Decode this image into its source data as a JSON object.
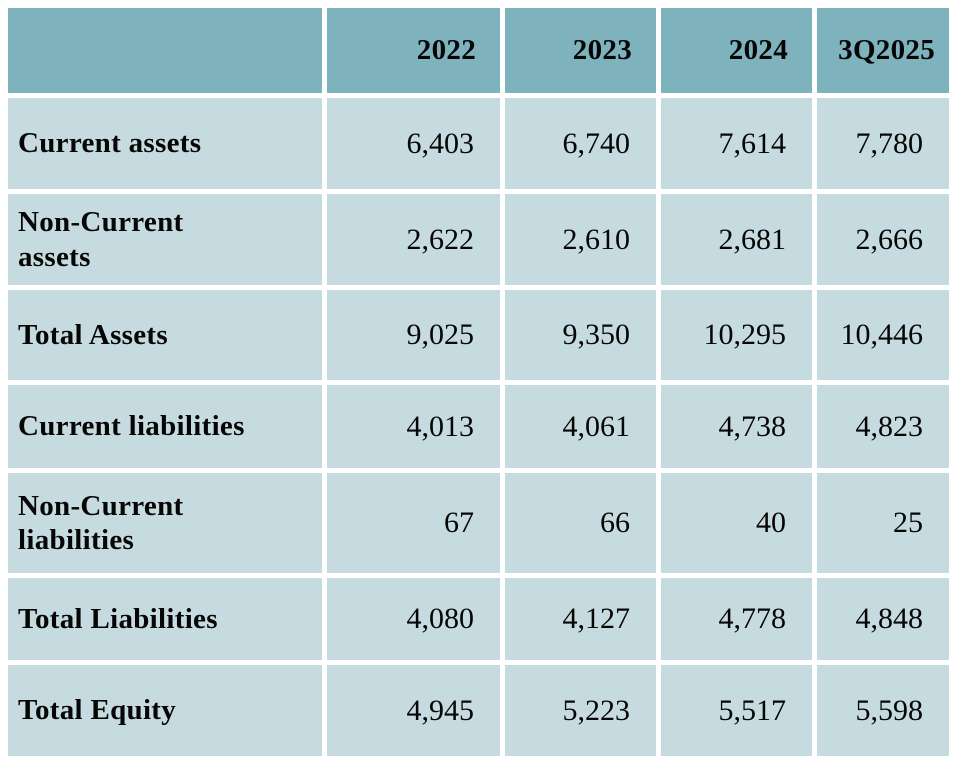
{
  "chart_data": {
    "type": "table",
    "columns": [
      "",
      "2022",
      "2023",
      "2024",
      "3Q2025"
    ],
    "rows": [
      {
        "label": "Current assets",
        "values": [
          "6,403",
          "6,740",
          "7,614",
          "7,780"
        ]
      },
      {
        "label": "Non-Current assets",
        "values": [
          "2,622",
          "2,610",
          "2,681",
          "2,666"
        ]
      },
      {
        "label": "Total Assets",
        "values": [
          "9,025",
          "9,350",
          "10,295",
          "10,446"
        ]
      },
      {
        "label": "Current liabilities",
        "values": [
          "4,013",
          "4,061",
          "4,738",
          "4,823"
        ]
      },
      {
        "label": "Non-Current liabilities",
        "values": [
          "67",
          "66",
          "40",
          "25"
        ]
      },
      {
        "label": "Total Liabilities",
        "values": [
          "4,080",
          "4,127",
          "4,778",
          "4,848"
        ]
      },
      {
        "label": "Total Equity",
        "values": [
          "4,945",
          "5,223",
          "5,517",
          "5,598"
        ]
      }
    ],
    "colors": {
      "header_bg": "#7eb2bd",
      "row_bg": "#c6dbdf",
      "gap": "#ffffff",
      "text": "#060606"
    },
    "layout": {
      "grid": "white gaps between cells",
      "label_align": "left",
      "value_align": "right"
    }
  }
}
